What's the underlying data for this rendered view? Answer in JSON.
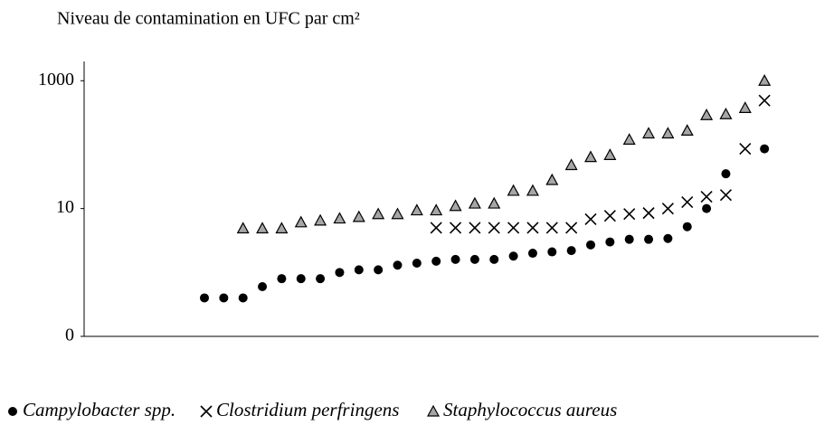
{
  "chart_data": {
    "type": "scatter",
    "title": "Niveau de contamination en UFC par cm²",
    "log_scale": true,
    "categories": [
      null,
      null,
      null,
      null,
      null,
      null,
      null,
      null,
      null,
      null,
      null,
      null,
      null,
      null,
      null,
      null,
      null,
      null,
      null,
      null,
      null,
      null,
      null,
      null,
      null,
      null,
      null,
      null,
      null,
      null
    ],
    "ylim": [
      0.1,
      2000
    ],
    "yticks": [
      {
        "value": 0.1,
        "label": "0"
      },
      10,
      1000
    ],
    "series": [
      {
        "name": "Campylobacter spp.",
        "marker": "circle",
        "color": "#000000",
        "values": [
          0.4,
          0.4,
          0.4,
          0.6,
          0.8,
          0.8,
          0.8,
          1.0,
          1.1,
          1.1,
          1.3,
          1.4,
          1.5,
          1.6,
          1.6,
          1.6,
          1.8,
          2.0,
          2.1,
          2.2,
          2.7,
          3.0,
          3.3,
          3.3,
          3.4,
          5.2,
          10,
          35,
          null,
          86
        ]
      },
      {
        "name": "Clostridium perfringens",
        "marker": "cross",
        "color": "#000000",
        "values": [
          null,
          null,
          null,
          null,
          null,
          null,
          null,
          null,
          null,
          null,
          null,
          null,
          5,
          5,
          5,
          5,
          5,
          5,
          5,
          5,
          6.8,
          7.7,
          8.2,
          8.5,
          10,
          12.6,
          15.3,
          16.3,
          86,
          490
        ]
      },
      {
        "name": "Staphylococcus aureus",
        "marker": "triangle",
        "color": "#a6a6a6",
        "values": [
          null,
          null,
          4.9,
          4.9,
          4.9,
          6.1,
          6.5,
          7.0,
          7.4,
          8.2,
          8.2,
          9.4,
          9.4,
          11,
          12,
          12,
          19,
          19,
          28,
          48,
          64,
          69,
          120,
          150,
          150,
          166,
          290,
          300,
          375,
          1000
        ]
      }
    ]
  }
}
